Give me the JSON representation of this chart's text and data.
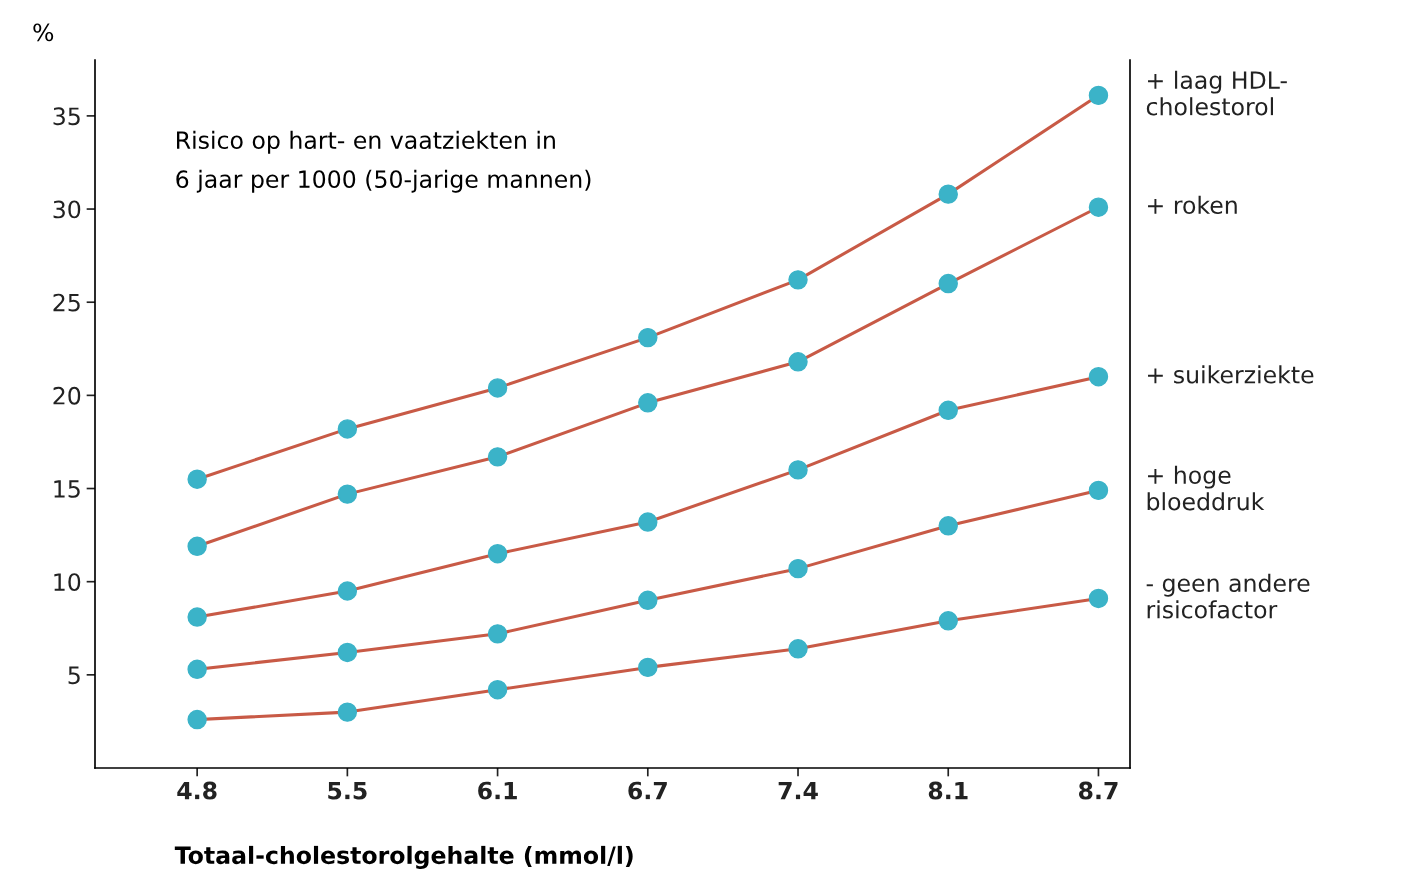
{
  "chart_data": {
    "type": "line",
    "title": "Risico op hart- en vaatziekten in\n6 jaar per 1000 (50-jarige mannen)",
    "xlabel": "Totaal-cholestorolgehalte (mmol/l)",
    "ylabel": "%",
    "categories": [
      "4.8",
      "5.5",
      "6.1",
      "6.7",
      "7.4",
      "8.1",
      "8.7"
    ],
    "ylim": [
      0,
      38
    ],
    "yticks": [
      5,
      10,
      15,
      20,
      25,
      30,
      35
    ],
    "grid": false,
    "legend": false,
    "marker": "circle",
    "line_style": "solid",
    "series": [
      {
        "name": "+ laag HDL-\ncholestorol",
        "color": "#c85a46",
        "values": [
          15.5,
          18.2,
          20.4,
          23.1,
          26.2,
          30.8,
          36.1
        ]
      },
      {
        "name": "+ roken",
        "color": "#c85a46",
        "values": [
          11.9,
          14.7,
          16.7,
          19.6,
          21.8,
          26.0,
          30.1
        ]
      },
      {
        "name": "+ suikerziekte",
        "color": "#c85a46",
        "values": [
          8.1,
          9.5,
          11.5,
          13.2,
          16.0,
          19.2,
          21.0
        ]
      },
      {
        "name": "+ hoge\nbloeddruk",
        "color": "#c85a46",
        "values": [
          5.3,
          6.2,
          7.2,
          9.0,
          10.7,
          13.0,
          14.9
        ]
      },
      {
        "name": "- geen andere\nrisicofactor",
        "color": "#c85a46",
        "values": [
          2.6,
          3.0,
          4.2,
          5.4,
          6.4,
          7.9,
          9.1
        ]
      }
    ]
  }
}
